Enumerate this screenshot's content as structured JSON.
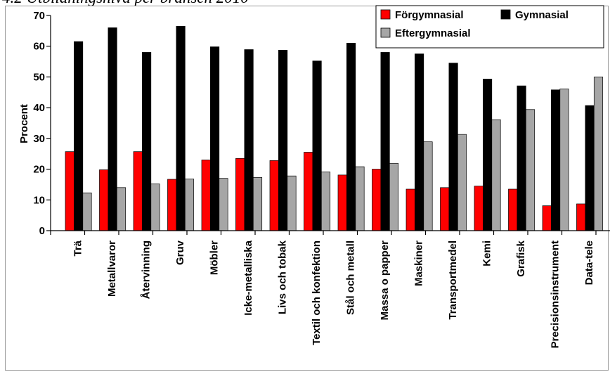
{
  "page": {
    "title": "4.2 Utbildningsnivå per bransch 2010"
  },
  "chart_data": {
    "type": "bar",
    "title": "",
    "xlabel": "",
    "ylabel": "Procent",
    "ylim": [
      0,
      70
    ],
    "yticks": [
      0,
      10,
      20,
      30,
      40,
      50,
      60,
      70
    ],
    "grid": false,
    "legend": "top-right",
    "categories": [
      "Trä",
      "Metallvaror",
      "Återvinning",
      "Gruv",
      "Möbler",
      "Icke-metalliska",
      "Livs och tobak",
      "Textil och konfektion",
      "Stål och metall",
      "Massa o papper",
      "Maskiner",
      "Transportmedel",
      "Kemi",
      "Grafisk",
      "Precisionsinstrument",
      "Data-tele"
    ],
    "series": [
      {
        "name": "Förgymnasial",
        "color": "#ff0000",
        "values": [
          25.7,
          19.8,
          25.7,
          16.7,
          23.0,
          23.5,
          22.8,
          25.5,
          18.1,
          20.0,
          13.5,
          14.0,
          14.5,
          13.5,
          8.1,
          8.7
        ]
      },
      {
        "name": "Gymnasial",
        "color": "#000000",
        "values": [
          61.5,
          66.0,
          58.0,
          66.5,
          59.8,
          58.9,
          58.7,
          55.2,
          61.0,
          58.0,
          57.5,
          54.5,
          49.3,
          47.1,
          45.8,
          40.7
        ]
      },
      {
        "name": "Eftergymnasial",
        "color": "#a6a6a6",
        "values": [
          12.3,
          14.0,
          15.2,
          16.8,
          17.0,
          17.3,
          17.8,
          19.1,
          20.8,
          21.9,
          28.9,
          31.3,
          36.1,
          39.4,
          46.1,
          50.0
        ]
      }
    ]
  }
}
